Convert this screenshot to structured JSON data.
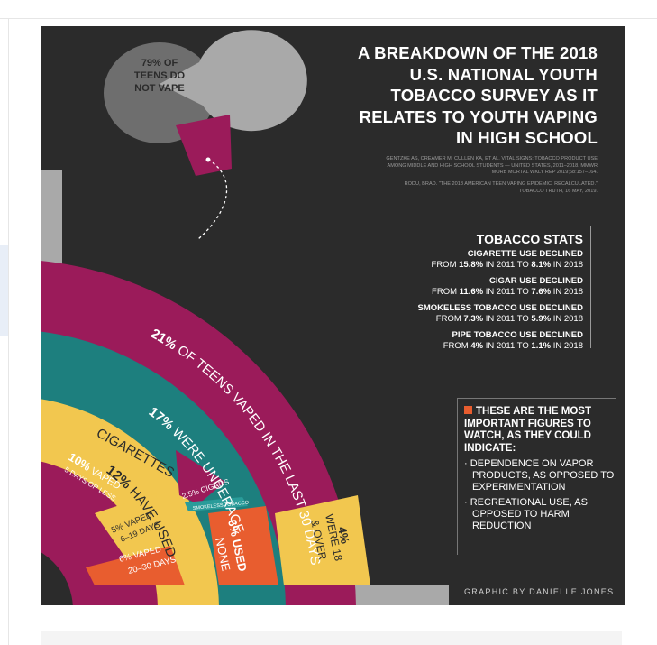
{
  "header": {
    "title_lines": [
      "A BREAKDOWN OF THE 2018",
      "U.S. NATIONAL YOUTH",
      "TOBACCO SURVEY AS IT",
      "RELATES TO YOUTH VAPING",
      "IN HIGH SCHOOL"
    ],
    "sources": [
      "GENTZKE AS, CREAMER M, CULLEN KA, ET AL. VITAL SIGNS: TOBACCO PRODUCT USE",
      "AMONG MIDDLE AND HIGH SCHOOL STUDENTS — UNITED STATES, 2011–2018. MMWR",
      "MORB MORTAL WKLY REP 2019;68:157–164.",
      "RODU, BRAD. \"THE 2018 AMERICAN TEEN VAPING EPIDEMIC, RECALCULATED.\"",
      "TOBACCO TRUTH, 16 MAY, 2019."
    ]
  },
  "chart_data": {
    "type": "pie",
    "pie": {
      "label_lines": [
        "79% OF",
        "TEENS DO",
        "NOT VAPE"
      ],
      "slices": [
        {
          "label": "79% OF TEENS DO NOT VAPE",
          "value": 79
        },
        {
          "label": "21% OF TEENS VAPED IN THE LAST 30 DAYS",
          "value": 21
        }
      ]
    },
    "bands": {
      "outer": {
        "pct": "21%",
        "text": "OF TEENS VAPED IN THE LAST 30 DAYS",
        "value": 21
      },
      "teal": {
        "pct": "17%",
        "text": "WERE UNDERAGE",
        "value": 17
      },
      "yellow": {
        "pct": "12%",
        "text_1": "HAVE USED",
        "text_2": "CIGARETTES",
        "value": 12
      },
      "vaped10": {
        "pct": "10%",
        "text_1": "VAPED",
        "text_2": "5 DAYS OR LESS",
        "value": 10
      },
      "vaped5": {
        "text_1": "5% VAPED",
        "text_2": "6–19 DAYS",
        "value": 5
      },
      "vaped6": {
        "text_1": "6% VAPED",
        "text_2": "20–30 DAYS",
        "value": 6
      },
      "cigars": {
        "text": "2.5% CIGARS",
        "value": 2.5
      },
      "smokeless": {
        "text": "SMOKELESS TOBACCO"
      },
      "usednone": {
        "text_1": "6% USED",
        "text_2": "NONE",
        "value": 6
      },
      "over18": {
        "text_1": "4%",
        "text_2": "WERE 18",
        "text_3": "& OVER",
        "value": 4
      }
    }
  },
  "stats": {
    "header": "TOBACCO STATS",
    "items": [
      {
        "label": "CIGARETTE USE DECLINED",
        "from_word": "FROM",
        "from": "15.8%",
        "in_word_1": "IN",
        "year1": "2011",
        "to_word": "TO",
        "to": "8.1%",
        "in_word_2": "IN",
        "year2": "2018"
      },
      {
        "label": "CIGAR USE DECLINED",
        "from_word": "FROM",
        "from": "11.6%",
        "in_word_1": "IN",
        "year1": "2011",
        "to_word": "TO",
        "to": "7.6%",
        "in_word_2": "IN",
        "year2": "2018"
      },
      {
        "label": "SMOKELESS TOBACCO USE DECLINED",
        "from_word": "FROM",
        "from": "7.3%",
        "in_word_1": "IN",
        "year1": "2011",
        "to_word": "TO",
        "to": "5.9%",
        "in_word_2": "IN",
        "year2": "2018"
      },
      {
        "label": "PIPE TOBACCO USE DECLINED",
        "from_word": "FROM",
        "from": "4%",
        "in_word_1": "IN",
        "year1": "2011",
        "to_word": "TO",
        "to": "1.1%",
        "in_word_2": "IN",
        "year2": "2018"
      }
    ]
  },
  "watch": {
    "heading": "THESE ARE THE MOST IMPORTANT FIGURES TO WATCH, AS THEY COULD INDICATE:",
    "bullets": [
      "· DEPENDENCE ON VAPOR PRODUCTS, AS OPPOSED TO EXPERIMENTATION",
      "· RECREATIONAL USE, AS OPPOSED TO HARM REDUCTION"
    ]
  },
  "credit": "GRAPHIC BY DANIELLE JONES",
  "colors": {
    "background": "#2b2b2b",
    "magenta": "#9b1b5a",
    "teal": "#1d7f7e",
    "yellow": "#f2c74f",
    "orange": "#e85d2f",
    "gray": "#a9a9a9",
    "gray_dark": "#6e6e6e",
    "smokeless": "#2a9c9a"
  }
}
